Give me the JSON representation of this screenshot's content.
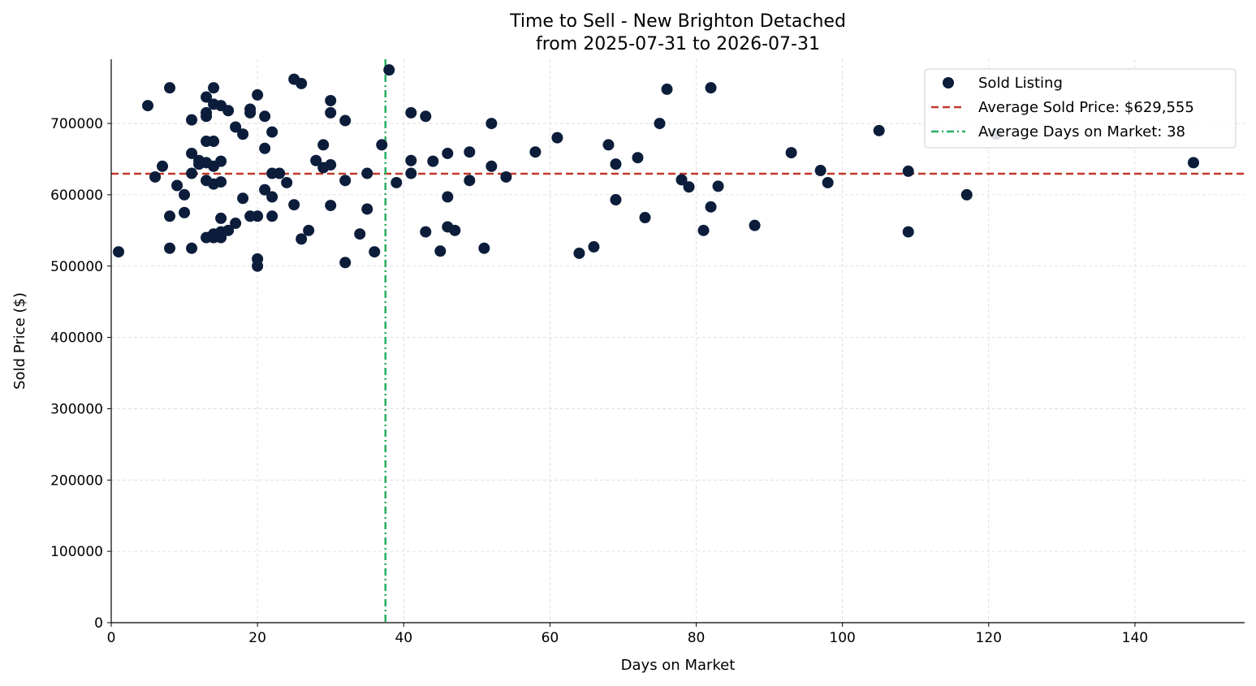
{
  "chart_data": {
    "type": "scatter",
    "title": "Time to Sell - New Brighton Detached",
    "subtitle": "from 2025-07-31 to 2026-07-31",
    "xlabel": "Days on Market",
    "ylabel": "Sold Price ($)",
    "xlim": [
      0,
      155
    ],
    "ylim": [
      0,
      790000
    ],
    "xticks": [
      0,
      20,
      40,
      60,
      80,
      100,
      120,
      140
    ],
    "yticks": [
      0,
      100000,
      200000,
      300000,
      400000,
      500000,
      600000,
      700000
    ],
    "grid": true,
    "legend_position": "top-right",
    "colors": {
      "points": "#0b1d3a",
      "avg_price_line": "#c0392b",
      "avg_days_line": "#27ae60"
    },
    "legend": [
      {
        "key": "points",
        "label": "Sold Listing"
      },
      {
        "key": "avg_price",
        "label": "Average Sold Price: $629,555"
      },
      {
        "key": "avg_days",
        "label": "Average Days on Market: 38"
      }
    ],
    "average_sold_price": 629555,
    "average_days_on_market": 37.5,
    "series": [
      {
        "name": "Sold Listing",
        "points": [
          {
            "x": 1,
            "y": 520000
          },
          {
            "x": 5,
            "y": 725000
          },
          {
            "x": 6,
            "y": 625000
          },
          {
            "x": 7,
            "y": 640000
          },
          {
            "x": 8,
            "y": 750000
          },
          {
            "x": 8,
            "y": 570000
          },
          {
            "x": 8,
            "y": 525000
          },
          {
            "x": 9,
            "y": 613000
          },
          {
            "x": 10,
            "y": 600000
          },
          {
            "x": 10,
            "y": 575000
          },
          {
            "x": 11,
            "y": 705000
          },
          {
            "x": 11,
            "y": 658000
          },
          {
            "x": 11,
            "y": 630000
          },
          {
            "x": 11,
            "y": 525000
          },
          {
            "x": 12,
            "y": 648000
          },
          {
            "x": 12,
            "y": 643000
          },
          {
            "x": 13,
            "y": 737000
          },
          {
            "x": 13,
            "y": 715000
          },
          {
            "x": 13,
            "y": 710000
          },
          {
            "x": 13,
            "y": 675000
          },
          {
            "x": 13,
            "y": 645000
          },
          {
            "x": 13,
            "y": 620000
          },
          {
            "x": 13,
            "y": 540000
          },
          {
            "x": 14,
            "y": 750000
          },
          {
            "x": 14,
            "y": 727000
          },
          {
            "x": 14,
            "y": 675000
          },
          {
            "x": 14,
            "y": 640000
          },
          {
            "x": 14,
            "y": 615000
          },
          {
            "x": 14,
            "y": 545000
          },
          {
            "x": 14,
            "y": 540000
          },
          {
            "x": 15,
            "y": 725000
          },
          {
            "x": 15,
            "y": 647000
          },
          {
            "x": 15,
            "y": 618000
          },
          {
            "x": 15,
            "y": 567000
          },
          {
            "x": 15,
            "y": 548000
          },
          {
            "x": 15,
            "y": 540000
          },
          {
            "x": 16,
            "y": 718000
          },
          {
            "x": 16,
            "y": 550000
          },
          {
            "x": 17,
            "y": 695000
          },
          {
            "x": 17,
            "y": 560000
          },
          {
            "x": 18,
            "y": 685000
          },
          {
            "x": 18,
            "y": 595000
          },
          {
            "x": 19,
            "y": 720000
          },
          {
            "x": 19,
            "y": 715000
          },
          {
            "x": 19,
            "y": 570000
          },
          {
            "x": 20,
            "y": 740000
          },
          {
            "x": 20,
            "y": 570000
          },
          {
            "x": 20,
            "y": 510000
          },
          {
            "x": 20,
            "y": 500000
          },
          {
            "x": 21,
            "y": 710000
          },
          {
            "x": 21,
            "y": 665000
          },
          {
            "x": 21,
            "y": 607000
          },
          {
            "x": 22,
            "y": 688000
          },
          {
            "x": 22,
            "y": 630000
          },
          {
            "x": 22,
            "y": 597000
          },
          {
            "x": 22,
            "y": 570000
          },
          {
            "x": 23,
            "y": 630000
          },
          {
            "x": 24,
            "y": 617000
          },
          {
            "x": 25,
            "y": 762000
          },
          {
            "x": 25,
            "y": 586000
          },
          {
            "x": 26,
            "y": 756000
          },
          {
            "x": 26,
            "y": 538000
          },
          {
            "x": 27,
            "y": 550000
          },
          {
            "x": 28,
            "y": 648000
          },
          {
            "x": 29,
            "y": 670000
          },
          {
            "x": 29,
            "y": 638000
          },
          {
            "x": 30,
            "y": 732000
          },
          {
            "x": 30,
            "y": 715000
          },
          {
            "x": 30,
            "y": 642000
          },
          {
            "x": 30,
            "y": 585000
          },
          {
            "x": 32,
            "y": 704000
          },
          {
            "x": 32,
            "y": 620000
          },
          {
            "x": 32,
            "y": 505000
          },
          {
            "x": 34,
            "y": 545000
          },
          {
            "x": 35,
            "y": 630000
          },
          {
            "x": 35,
            "y": 580000
          },
          {
            "x": 36,
            "y": 520000
          },
          {
            "x": 37,
            "y": 670000
          },
          {
            "x": 38,
            "y": 775000
          },
          {
            "x": 39,
            "y": 617000
          },
          {
            "x": 41,
            "y": 715000
          },
          {
            "x": 41,
            "y": 648000
          },
          {
            "x": 41,
            "y": 630000
          },
          {
            "x": 43,
            "y": 710000
          },
          {
            "x": 43,
            "y": 548000
          },
          {
            "x": 44,
            "y": 647000
          },
          {
            "x": 45,
            "y": 521000
          },
          {
            "x": 46,
            "y": 658000
          },
          {
            "x": 46,
            "y": 597000
          },
          {
            "x": 46,
            "y": 555000
          },
          {
            "x": 47,
            "y": 550000
          },
          {
            "x": 49,
            "y": 660000
          },
          {
            "x": 49,
            "y": 620000
          },
          {
            "x": 51,
            "y": 525000
          },
          {
            "x": 52,
            "y": 700000
          },
          {
            "x": 52,
            "y": 640000
          },
          {
            "x": 54,
            "y": 625000
          },
          {
            "x": 58,
            "y": 660000
          },
          {
            "x": 61,
            "y": 680000
          },
          {
            "x": 64,
            "y": 518000
          },
          {
            "x": 66,
            "y": 527000
          },
          {
            "x": 68,
            "y": 670000
          },
          {
            "x": 69,
            "y": 643000
          },
          {
            "x": 69,
            "y": 593000
          },
          {
            "x": 72,
            "y": 652000
          },
          {
            "x": 73,
            "y": 568000
          },
          {
            "x": 75,
            "y": 700000
          },
          {
            "x": 76,
            "y": 748000
          },
          {
            "x": 78,
            "y": 621000
          },
          {
            "x": 79,
            "y": 611000
          },
          {
            "x": 81,
            "y": 550000
          },
          {
            "x": 82,
            "y": 750000
          },
          {
            "x": 82,
            "y": 583000
          },
          {
            "x": 83,
            "y": 612000
          },
          {
            "x": 88,
            "y": 557000
          },
          {
            "x": 93,
            "y": 659000
          },
          {
            "x": 97,
            "y": 634000
          },
          {
            "x": 98,
            "y": 617000
          },
          {
            "x": 105,
            "y": 690000
          },
          {
            "x": 109,
            "y": 633000
          },
          {
            "x": 109,
            "y": 548000
          },
          {
            "x": 117,
            "y": 600000
          },
          {
            "x": 121,
            "y": 685000
          },
          {
            "x": 148,
            "y": 645000
          }
        ]
      }
    ]
  }
}
